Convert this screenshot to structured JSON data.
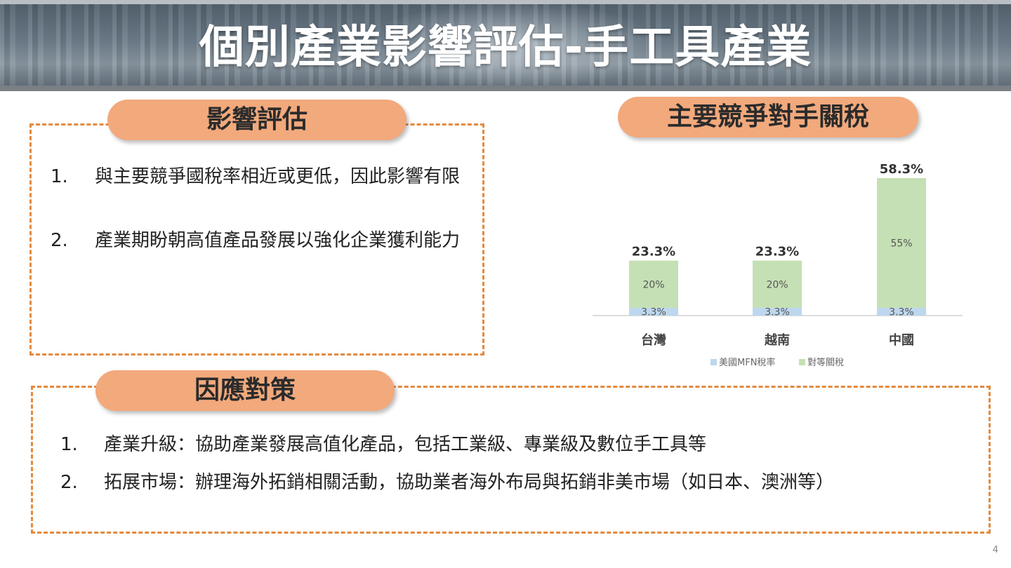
{
  "title": "個別產業影響評估-手工具產業",
  "impact": {
    "heading": "影響評估",
    "items": [
      {
        "num": "1.",
        "text": "與主要競爭國稅率相近或更低，因此影響有限"
      },
      {
        "num": "2.",
        "text": "產業期盼朝高值產品發展以強化企業獲利能力"
      }
    ]
  },
  "tariff": {
    "heading": "主要競爭對手關稅"
  },
  "response": {
    "heading": "因應對策",
    "items": [
      {
        "num": "1.",
        "text": "產業升級：協助產業發展高值化產品，包括工業級、專業級及數位手工具等"
      },
      {
        "num": "2.",
        "text": "拓展市場：辦理海外拓銷相關活動，協助業者海外布局與拓銷非美市場（如日本、澳洲等）"
      }
    ]
  },
  "page_number": "4",
  "chart_data": {
    "type": "bar",
    "stacked": true,
    "categories": [
      "台灣",
      "越南",
      "中國"
    ],
    "series": [
      {
        "name": "美國MFN稅率",
        "values": [
          3.3,
          3.3,
          3.3
        ],
        "labels": [
          "3.3%",
          "3.3%",
          "3.3%"
        ],
        "color": "#bdd7ee"
      },
      {
        "name": "對等關稅",
        "values": [
          20,
          20,
          55
        ],
        "labels": [
          "20%",
          "20%",
          "55%"
        ],
        "color": "#c5e0b4"
      }
    ],
    "totals": [
      "23.3%",
      "23.3%",
      "58.3%"
    ],
    "ylim": [
      0,
      58.3
    ],
    "legend_position": "bottom",
    "grid": false
  }
}
